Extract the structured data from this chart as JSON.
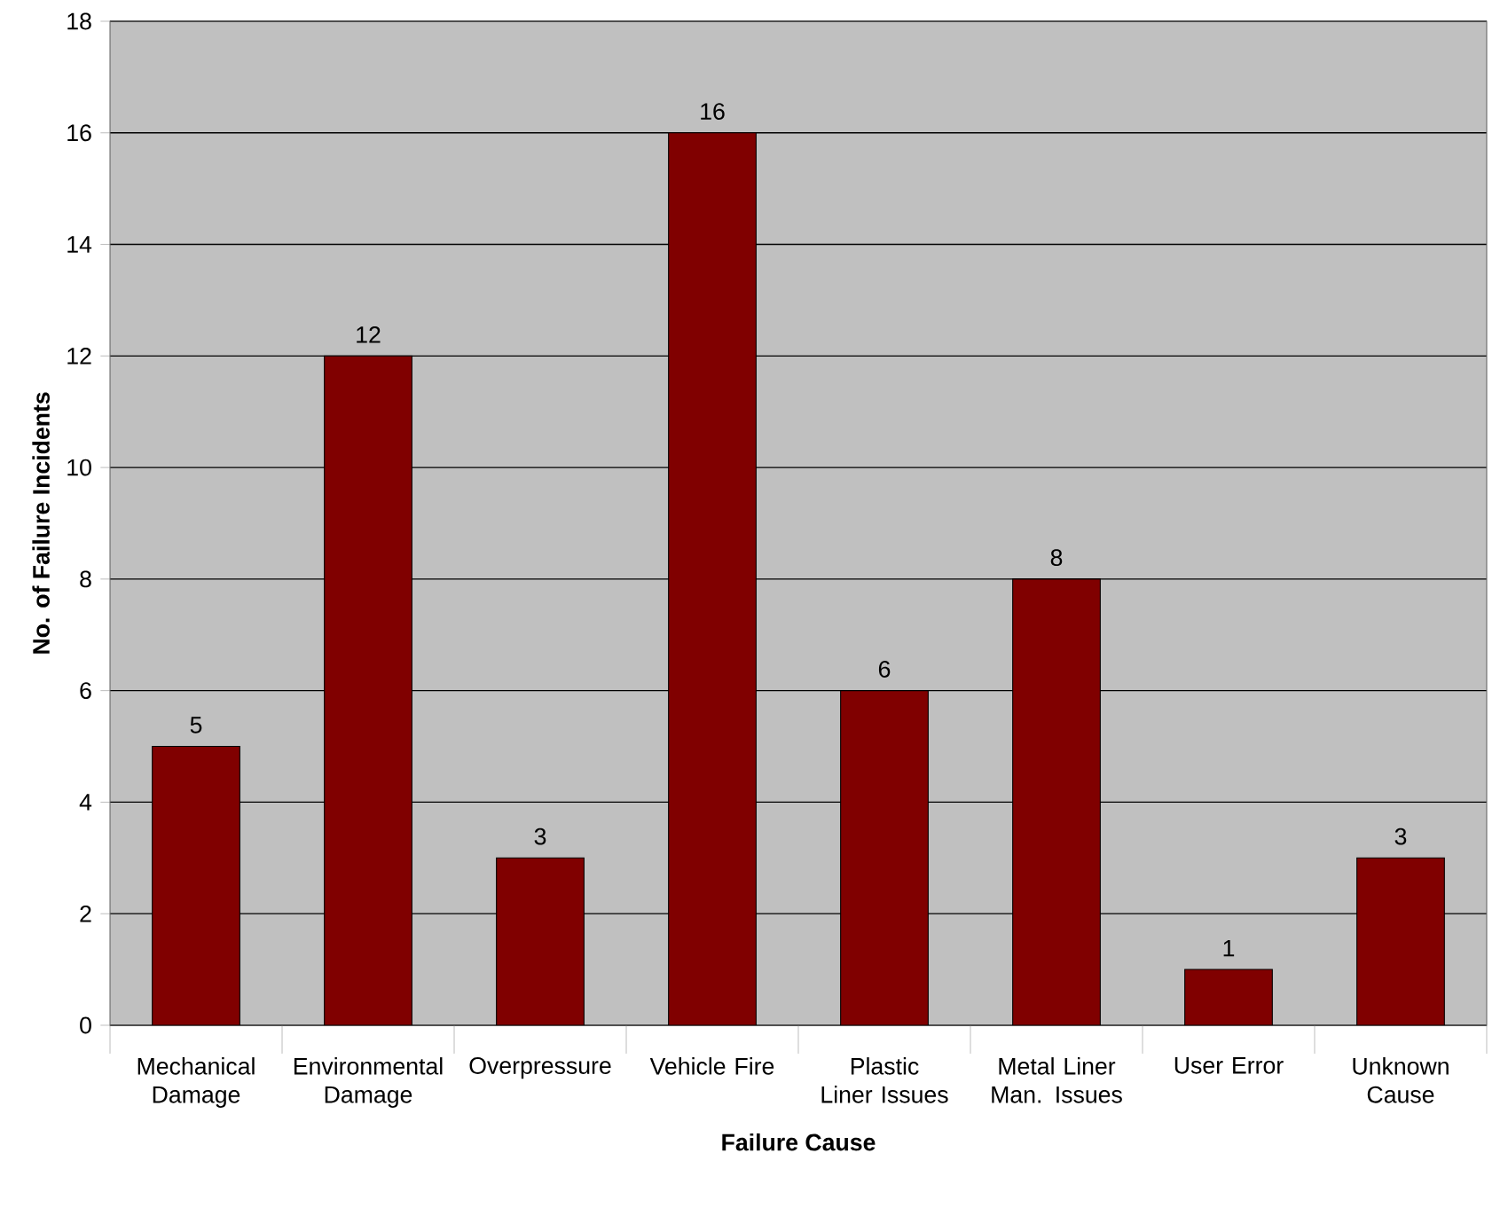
{
  "chart_data": {
    "type": "bar",
    "xlabel": "Failure Cause",
    "ylabel": "No. of Failure Incidents",
    "categories": [
      "Mechanical Damage",
      "Environmental Damage",
      "Overpressure",
      "Vehicle Fire",
      "Plastic Liner Issues",
      "Metal Liner Man. Issues",
      "User Error",
      "Unknown Cause"
    ],
    "values": [
      5,
      12,
      3,
      16,
      6,
      8,
      1,
      3
    ],
    "color": "#800000",
    "ylim": [
      0,
      18
    ],
    "yticks": [
      0,
      2,
      4,
      6,
      8,
      10,
      12,
      14,
      16,
      18
    ],
    "grid": "y",
    "data_labels": true
  }
}
